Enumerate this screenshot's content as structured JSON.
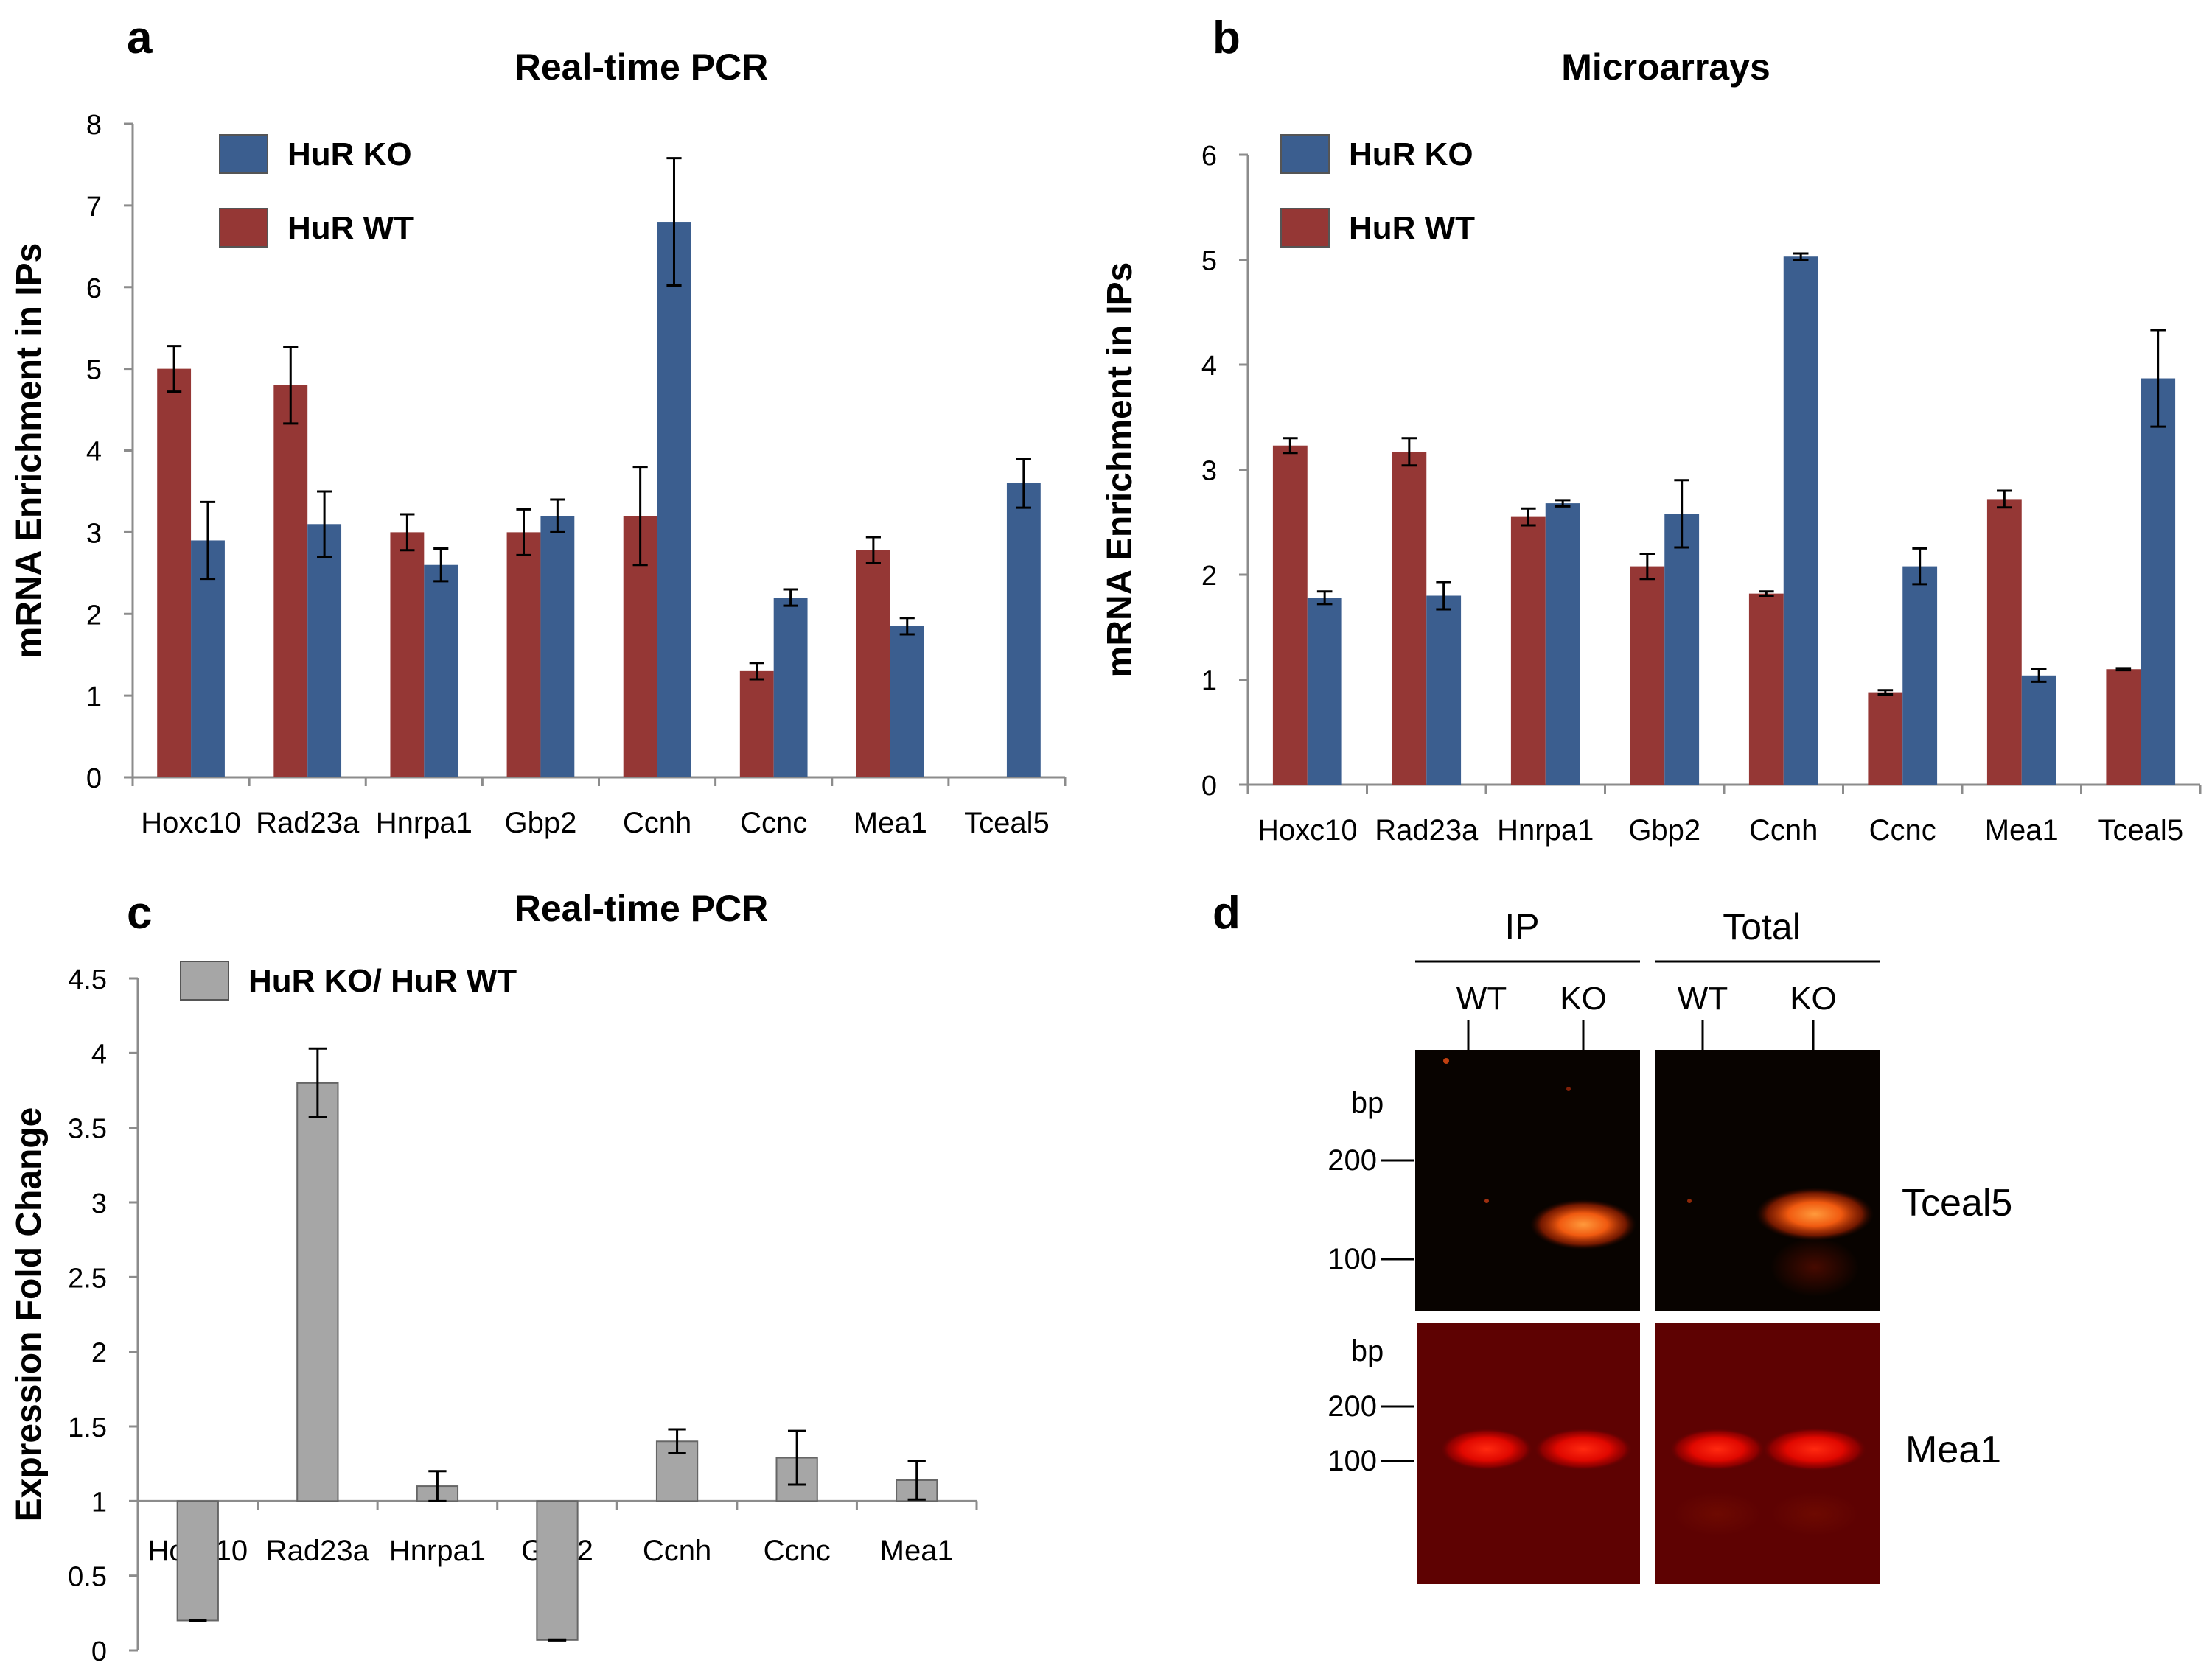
{
  "colors": {
    "ko": "#3B5E8F",
    "wt": "#953735",
    "ratio": "#A6A6A6",
    "axis": "#8C8C8C",
    "gel_dark": "#080300",
    "gel_red": "#5E0202"
  },
  "chart_data": [
    {
      "panel": "a",
      "type": "bar",
      "title": "Real-time PCR",
      "xlabel": "",
      "ylabel": "mRNA Enrichment in IPs",
      "ylim": [
        0,
        8
      ],
      "yticks": [
        "0",
        "1",
        "2",
        "3",
        "4",
        "5",
        "6",
        "7",
        "8"
      ],
      "grid": false,
      "legend_position": "top-left",
      "categories": [
        "Hoxc10",
        "Rad23a",
        "Hnrpa1",
        "Gbp2",
        "Ccnh",
        "Ccnc",
        "Mea1",
        "Tceal5"
      ],
      "series": [
        {
          "name": "HuR WT",
          "color": "#953735",
          "values": [
            5.0,
            4.8,
            3.0,
            3.0,
            3.2,
            1.3,
            2.78,
            0
          ],
          "errors": [
            0.28,
            0.47,
            0.22,
            0.28,
            0.6,
            0.1,
            0.16,
            0
          ]
        },
        {
          "name": "HuR KO",
          "color": "#3B5E8F",
          "values": [
            2.9,
            3.1,
            2.6,
            3.2,
            6.8,
            2.2,
            1.85,
            3.6
          ],
          "errors": [
            0.47,
            0.4,
            0.2,
            0.2,
            0.78,
            0.1,
            0.1,
            0.3
          ]
        }
      ],
      "legend_order": [
        "HuR KO",
        "HuR WT"
      ]
    },
    {
      "panel": "b",
      "type": "bar",
      "title": "Microarrays",
      "xlabel": "",
      "ylabel": "mRNA Enrichment in IPs",
      "ylim": [
        0,
        6
      ],
      "yticks": [
        "0",
        "1",
        "2",
        "3",
        "4",
        "5",
        "6"
      ],
      "grid": false,
      "legend_position": "top-left",
      "categories": [
        "Hoxc10",
        "Rad23a",
        "Hnrpa1",
        "Gbp2",
        "Ccnh",
        "Ccnc",
        "Mea1",
        "Tceal5"
      ],
      "series": [
        {
          "name": "HuR WT",
          "color": "#953735",
          "values": [
            3.23,
            3.17,
            2.55,
            2.08,
            1.82,
            0.88,
            2.72,
            1.1
          ],
          "errors": [
            0.07,
            0.13,
            0.08,
            0.12,
            0.02,
            0.02,
            0.08,
            0.01
          ]
        },
        {
          "name": "HuR KO",
          "color": "#3B5E8F",
          "values": [
            1.78,
            1.8,
            2.68,
            2.58,
            5.03,
            2.08,
            1.04,
            3.87
          ],
          "errors": [
            0.06,
            0.13,
            0.03,
            0.32,
            0.03,
            0.17,
            0.06,
            0.46
          ]
        }
      ],
      "legend_order": [
        "HuR KO",
        "HuR WT"
      ]
    },
    {
      "panel": "c",
      "type": "bar",
      "title": "Real-time PCR",
      "xlabel": "",
      "ylabel": "Expression Fold Change",
      "ylim": [
        0,
        4.5
      ],
      "baseline": 1,
      "yticks": [
        "0",
        "0.5",
        "1",
        "1.5",
        "2",
        "2.5",
        "3",
        "3.5",
        "4",
        "4.5"
      ],
      "grid": false,
      "legend_position": "top-left",
      "categories": [
        "Hoxc10",
        "Rad23a",
        "Hnrpa1",
        "Gbp2",
        "Ccnh",
        "Ccnc",
        "Mea1"
      ],
      "series": [
        {
          "name": "HuR KO/ HuR WT",
          "color": "#A6A6A6",
          "values": [
            0.2,
            3.8,
            1.1,
            0.07,
            1.4,
            1.29,
            1.14
          ],
          "errors": [
            0.005,
            0.23,
            0.1,
            0.003,
            0.08,
            0.18,
            0.13
          ]
        }
      ]
    }
  ],
  "panel_labels": [
    "a",
    "b",
    "c",
    "d"
  ],
  "gel": {
    "group_ip": "IP",
    "group_total": "Total",
    "lanes": [
      "WT",
      "KO",
      "WT",
      "KO"
    ],
    "top_gel": {
      "bp_label": "bp",
      "markers": [
        "200",
        "100"
      ],
      "gene": "Tceal5",
      "band_in_lanes": [
        false,
        true,
        false,
        true
      ]
    },
    "bottom_gel": {
      "bp_label": "bp",
      "markers": [
        "200",
        "100"
      ],
      "gene": "Mea1",
      "band_in_lanes": [
        true,
        true,
        true,
        true
      ]
    }
  }
}
